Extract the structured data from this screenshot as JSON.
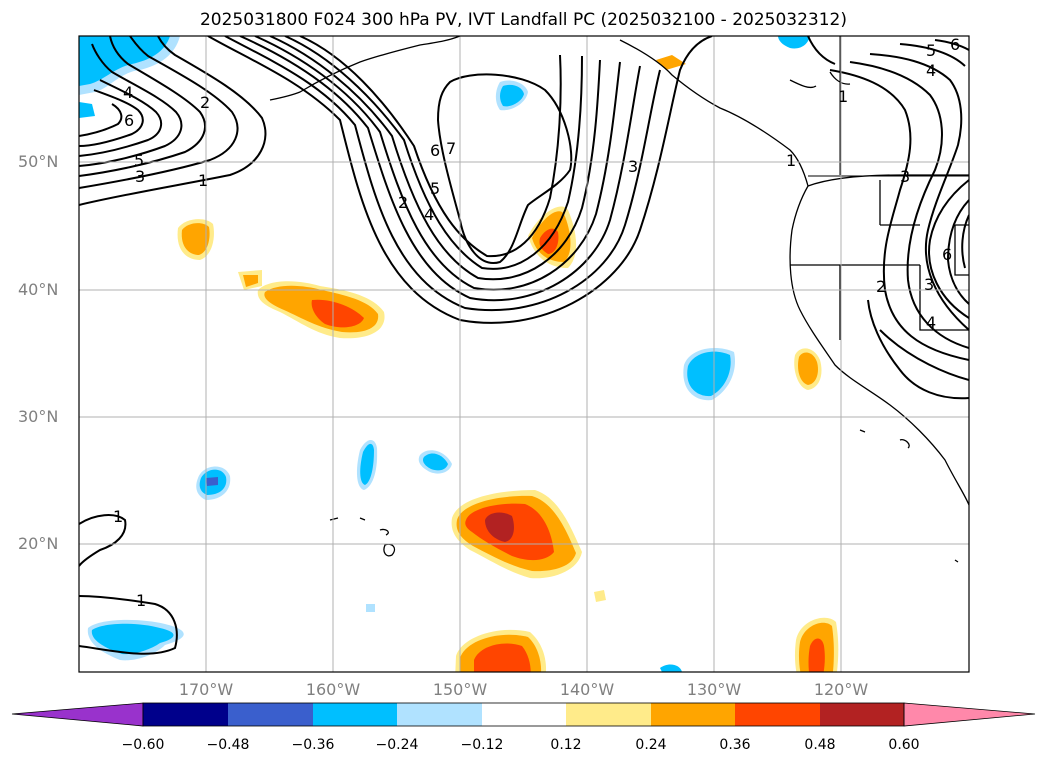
{
  "title": "2025031800 F024 300 hPa PV, IVT Landfall PC (2025032100 - 2025032312)",
  "latitude_labels": [
    "50°N",
    "40°N",
    "30°N",
    "20°N"
  ],
  "longitude_labels": [
    "170°W",
    "160°W",
    "150°W",
    "140°W",
    "130°W",
    "120°W"
  ],
  "contour_labels": [
    "4",
    "6",
    "5",
    "3",
    "2",
    "1",
    "2",
    "4",
    "5",
    "6",
    "7",
    "3",
    "1",
    "4",
    "5",
    "6",
    "1",
    "3",
    "2",
    "3",
    "6",
    "4",
    "1",
    "1"
  ],
  "colorbar": {
    "ticks": [
      "−0.60",
      "−0.48",
      "−0.36",
      "−0.24",
      "−0.12",
      "0.12",
      "0.24",
      "0.36",
      "0.48",
      "0.60"
    ],
    "colors": [
      "#9932cc",
      "#00008b",
      "#3a5fcd",
      "#00bfff",
      "#b0e2ff",
      "#ffffff",
      "#ffeb8a",
      "#ffa500",
      "#ff4500",
      "#b22222",
      "#ff88aa"
    ]
  },
  "fill_colors": {
    "pale_yellow": "#ffeb8a",
    "orange": "#ffa500",
    "red_orange": "#ff4500",
    "dark_red": "#b22222",
    "light_blue": "#b0e2ff",
    "blue": "#00bfff",
    "royal_blue": "#3a5fcd"
  }
}
